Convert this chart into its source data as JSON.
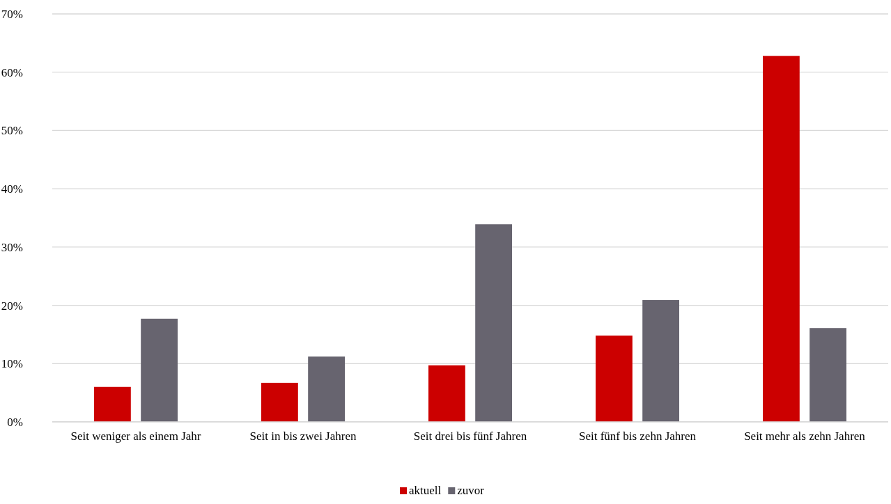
{
  "chart_data": {
    "type": "bar",
    "categories": [
      "Seit weniger als einem Jahr",
      "Seit in bis zwei Jahren",
      "Seit drei bis fünf Jahren",
      "Seit fünf bis zehn Jahren",
      "Seit mehr als zehn Jahren"
    ],
    "series": [
      {
        "name": "aktuell",
        "color": "#cc0000",
        "values": [
          6.0,
          6.7,
          9.7,
          14.8,
          62.8
        ]
      },
      {
        "name": "zuvor",
        "color": "#67646f",
        "values": [
          17.7,
          11.2,
          33.9,
          20.9,
          16.1
        ]
      }
    ],
    "ylim": [
      0,
      70
    ],
    "yticks": [
      {
        "value": 0,
        "label": "0%"
      },
      {
        "value": 10,
        "label": "10%"
      },
      {
        "value": 20,
        "label": "20%"
      },
      {
        "value": 30,
        "label": "30%"
      },
      {
        "value": 40,
        "label": "40%"
      },
      {
        "value": 50,
        "label": "50%"
      },
      {
        "value": 60,
        "label": "60%"
      },
      {
        "value": 70,
        "label": "70%"
      }
    ],
    "grid": "y",
    "legend": "bottom"
  }
}
